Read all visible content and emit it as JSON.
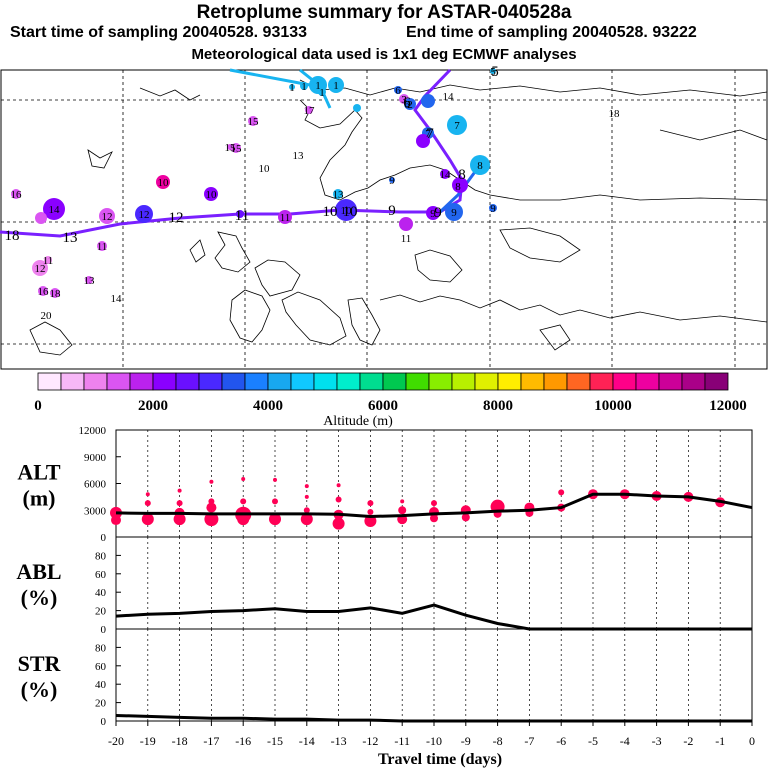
{
  "title": "Retroplume summary for ASTAR-040528a",
  "start_label": "Start time of sampling 20040528. 93133",
  "end_label": "End time of sampling 20040528. 93222",
  "met_label": "Meteorological data used is 1x1 deg ECMWF analyses",
  "colorbar": {
    "ticks": [
      "0",
      "2000",
      "4000",
      "6000",
      "8000",
      "10000",
      "12000"
    ],
    "label": "Altitude (m)",
    "colors": [
      "#ffe8ff",
      "#f7b8f7",
      "#ee82ee",
      "#da55f2",
      "#bb22ee",
      "#8a00ff",
      "#6a10ff",
      "#4a28ff",
      "#2255ee",
      "#1a80ff",
      "#18a8f0",
      "#10c8ff",
      "#00e0ee",
      "#00eecc",
      "#00dd90",
      "#00c850",
      "#40dd00",
      "#88ee00",
      "#b8f000",
      "#e0f000",
      "#ffee00",
      "#ffbb00",
      "#ff9900",
      "#ff6622",
      "#ff2255",
      "#ff0088",
      "#ee00a0",
      "#cc0099",
      "#aa0088",
      "#880077"
    ]
  },
  "map": {
    "trajectory_labels": [
      "18",
      "13",
      "12",
      "11",
      "10",
      "10",
      "9",
      "9",
      "8",
      "7",
      "6",
      "5"
    ],
    "cluster_labels": [
      "1",
      "1",
      "1",
      "1",
      "1",
      "2",
      "3",
      "5",
      "6",
      "6",
      "7",
      "7",
      "8",
      "8",
      "9",
      "9",
      "9",
      "9",
      "10",
      "10",
      "10",
      "10",
      "11",
      "11",
      "11",
      "11",
      "12",
      "12",
      "12",
      "13",
      "13",
      "13",
      "14",
      "14",
      "14",
      "14",
      "15",
      "15",
      "15",
      "16",
      "16",
      "17",
      "18",
      "18",
      "20"
    ]
  },
  "chart_data": [
    {
      "type": "line",
      "name": "ALT",
      "ylabel_line1": "ALT",
      "ylabel_line2": "(m)",
      "ylim": [
        0,
        12000
      ],
      "yticks": [
        0,
        3000,
        6000,
        9000,
        12000
      ],
      "x": [
        -20,
        -19,
        -18,
        -17,
        -16,
        -15,
        -14,
        -13,
        -12,
        -11,
        -10,
        -9,
        -8,
        -7,
        -6,
        -5,
        -4,
        -3,
        -2,
        -1,
        0
      ],
      "values": [
        2700,
        2650,
        2650,
        2600,
        2600,
        2600,
        2600,
        2550,
        2300,
        2400,
        2600,
        2700,
        2900,
        3000,
        3300,
        4800,
        4800,
        4600,
        4500,
        4000,
        3300
      ],
      "scatter": [
        {
          "x": -20,
          "y": 2700,
          "r": 6
        },
        {
          "x": -20,
          "y": 1900,
          "r": 5
        },
        {
          "x": -19,
          "y": 4800,
          "r": 2
        },
        {
          "x": -19,
          "y": 3800,
          "r": 3
        },
        {
          "x": -19,
          "y": 2000,
          "r": 6
        },
        {
          "x": -18,
          "y": 5200,
          "r": 2
        },
        {
          "x": -18,
          "y": 3800,
          "r": 3
        },
        {
          "x": -18,
          "y": 2700,
          "r": 5
        },
        {
          "x": -18,
          "y": 2000,
          "r": 6
        },
        {
          "x": -17,
          "y": 6200,
          "r": 2
        },
        {
          "x": -17,
          "y": 4000,
          "r": 3
        },
        {
          "x": -17,
          "y": 3300,
          "r": 5
        },
        {
          "x": -17,
          "y": 2000,
          "r": 7
        },
        {
          "x": -16,
          "y": 6500,
          "r": 2
        },
        {
          "x": -16,
          "y": 4000,
          "r": 3
        },
        {
          "x": -16,
          "y": 2500,
          "r": 8
        },
        {
          "x": -16,
          "y": 2000,
          "r": 6
        },
        {
          "x": -15,
          "y": 6400,
          "r": 2
        },
        {
          "x": -15,
          "y": 4000,
          "r": 3
        },
        {
          "x": -15,
          "y": 2000,
          "r": 6
        },
        {
          "x": -14,
          "y": 5700,
          "r": 2
        },
        {
          "x": -14,
          "y": 4500,
          "r": 2
        },
        {
          "x": -14,
          "y": 3000,
          "r": 3
        },
        {
          "x": -14,
          "y": 2000,
          "r": 6
        },
        {
          "x": -13,
          "y": 5800,
          "r": 2
        },
        {
          "x": -13,
          "y": 4200,
          "r": 3
        },
        {
          "x": -13,
          "y": 2500,
          "r": 5
        },
        {
          "x": -13,
          "y": 1500,
          "r": 6
        },
        {
          "x": -12,
          "y": 3800,
          "r": 3
        },
        {
          "x": -12,
          "y": 2800,
          "r": 3
        },
        {
          "x": -12,
          "y": 1800,
          "r": 6
        },
        {
          "x": -11,
          "y": 3000,
          "r": 4
        },
        {
          "x": -11,
          "y": 2000,
          "r": 5
        },
        {
          "x": -11,
          "y": 4000,
          "r": 2
        },
        {
          "x": -10,
          "y": 3800,
          "r": 3
        },
        {
          "x": -10,
          "y": 2800,
          "r": 5
        },
        {
          "x": -10,
          "y": 2100,
          "r": 4
        },
        {
          "x": -9,
          "y": 3000,
          "r": 5
        },
        {
          "x": -9,
          "y": 2200,
          "r": 4
        },
        {
          "x": -8,
          "y": 3400,
          "r": 7
        },
        {
          "x": -8,
          "y": 2600,
          "r": 4
        },
        {
          "x": -7,
          "y": 3300,
          "r": 5
        },
        {
          "x": -7,
          "y": 2700,
          "r": 4
        },
        {
          "x": -6,
          "y": 5000,
          "r": 3
        },
        {
          "x": -6,
          "y": 3300,
          "r": 4
        },
        {
          "x": -5,
          "y": 4800,
          "r": 5
        },
        {
          "x": -4,
          "y": 4800,
          "r": 5
        },
        {
          "x": -3,
          "y": 4600,
          "r": 5
        },
        {
          "x": -2,
          "y": 4500,
          "r": 5
        },
        {
          "x": -1,
          "y": 3900,
          "r": 5
        }
      ],
      "scatter_color": "#ff0055"
    },
    {
      "type": "line",
      "name": "ABL",
      "ylabel_line1": "ABL",
      "ylabel_line2": "(%)",
      "ylim": [
        0,
        100
      ],
      "yticks": [
        0,
        20,
        40,
        60,
        80
      ],
      "x": [
        -20,
        -19,
        -18,
        -17,
        -16,
        -15,
        -14,
        -13,
        -12,
        -11,
        -10,
        -9,
        -8,
        -7,
        -6,
        -5,
        -4,
        -3,
        -2,
        -1,
        0
      ],
      "values": [
        14,
        16,
        17,
        19,
        20,
        22,
        19,
        19,
        23,
        17,
        26,
        15,
        6,
        0,
        0,
        0,
        0,
        0,
        0,
        0,
        0
      ]
    },
    {
      "type": "line",
      "name": "STR",
      "ylabel_line1": "STR",
      "ylabel_line2": "(%)",
      "ylim": [
        0,
        100
      ],
      "yticks": [
        0,
        20,
        40,
        60,
        80
      ],
      "x": [
        -20,
        -19,
        -18,
        -17,
        -16,
        -15,
        -14,
        -13,
        -12,
        -11,
        -10,
        -9,
        -8,
        -7,
        -6,
        -5,
        -4,
        -3,
        -2,
        -1,
        0
      ],
      "values": [
        6,
        5,
        4,
        3,
        3,
        2,
        2,
        1,
        1,
        0,
        0,
        0,
        0,
        0,
        0,
        0,
        0,
        0,
        0,
        0,
        0
      ]
    }
  ],
  "xaxis": {
    "label": "Travel time (days)",
    "ticks": [
      "-20",
      "-19",
      "-18",
      "-17",
      "-16",
      "-15",
      "-14",
      "-13",
      "-12",
      "-11",
      "-10",
      "-9",
      "-8",
      "-7",
      "-6",
      "-5",
      "-4",
      "-3",
      "-2",
      "-1",
      "0"
    ]
  }
}
